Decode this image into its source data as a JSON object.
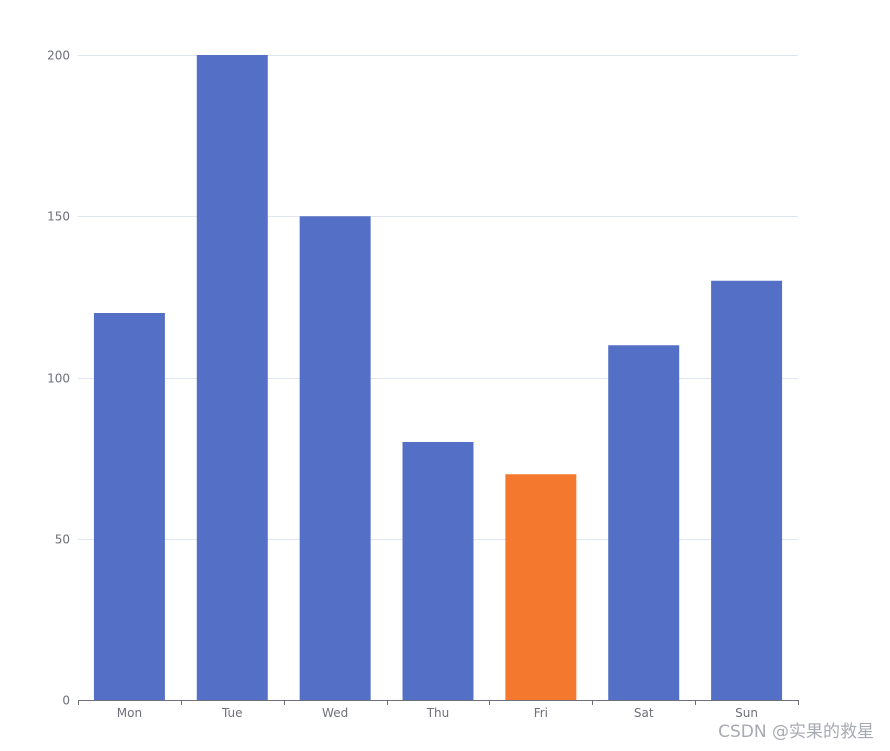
{
  "chart_data": {
    "type": "bar",
    "categories": [
      "Mon",
      "Tue",
      "Wed",
      "Thu",
      "Fri",
      "Sat",
      "Sun"
    ],
    "values": [
      120,
      200,
      150,
      80,
      70,
      110,
      130
    ],
    "ylim": [
      0,
      200
    ],
    "yticks": [
      0,
      50,
      100,
      150,
      200
    ],
    "grid": true,
    "colors": {
      "bar": "#5470c6",
      "highlight": "#f5782f",
      "grid": "#e0e6f1",
      "axis": "#6e7079"
    },
    "highlight_index": 4
  },
  "watermark": "CSDN @实果的救星"
}
